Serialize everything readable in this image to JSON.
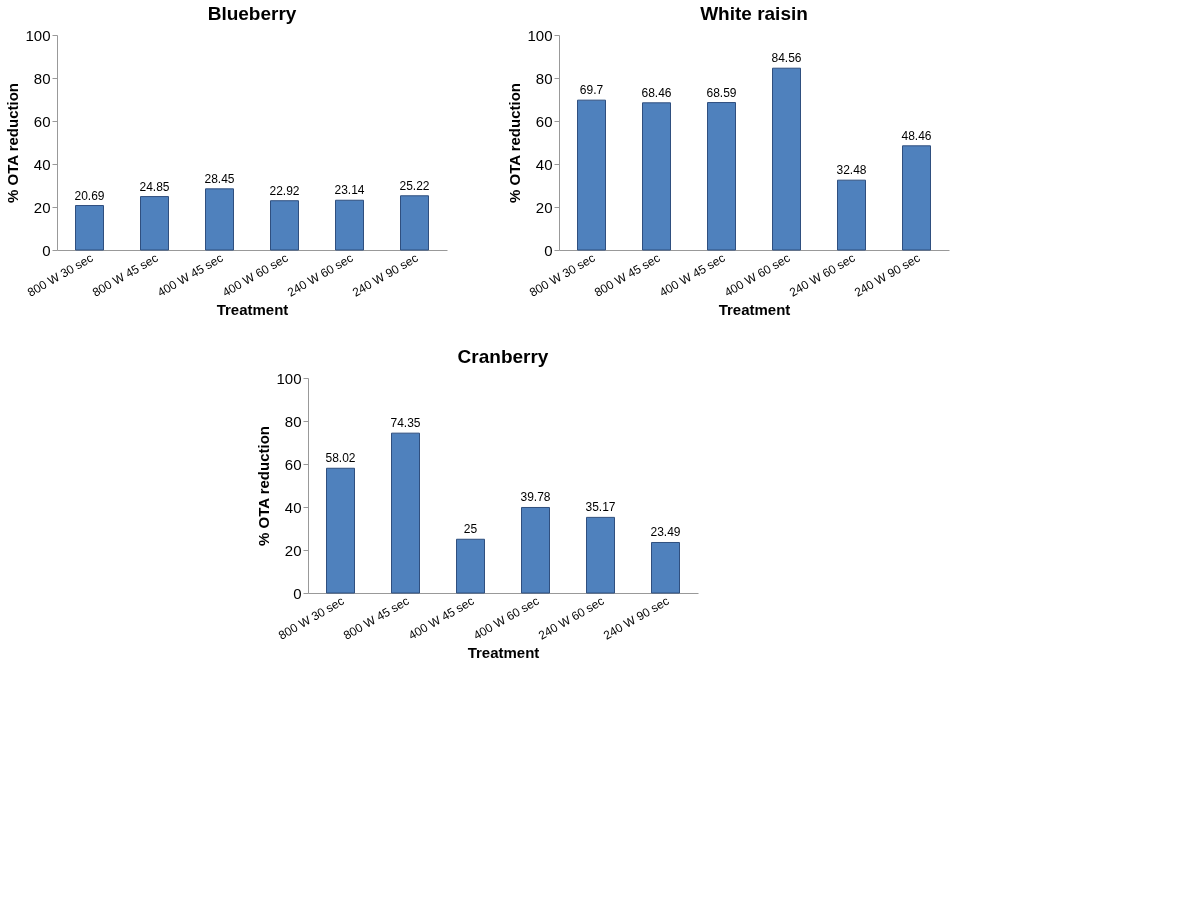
{
  "chart_data": [
    {
      "type": "bar",
      "title": "Blueberry",
      "xlabel": "Treatment",
      "ylabel": "% OTA reduction",
      "categories": [
        "800 W 30 sec",
        "800 W 45 sec",
        "400 W 45 sec",
        "400 W 60 sec",
        "240 W 60 sec",
        "240 W 90 sec"
      ],
      "values": [
        20.69,
        24.85,
        28.45,
        22.92,
        23.14,
        25.22
      ],
      "color": "#4f81bd",
      "ylim": [
        0,
        100
      ],
      "yticks": [
        0,
        20,
        40,
        60,
        80,
        100
      ],
      "data_labels": true
    },
    {
      "type": "bar",
      "title": "White raisin",
      "xlabel": "Treatment",
      "ylabel": "% OTA reduction",
      "categories": [
        "800 W 30 sec",
        "800 W 45 sec",
        "400 W 45 sec",
        "400 W 60 sec",
        "240 W 60 sec",
        "240 W 90 sec"
      ],
      "values": [
        69.7,
        68.46,
        68.59,
        84.56,
        32.48,
        48.46
      ],
      "color": "#4f81bd",
      "ylim": [
        0,
        100
      ],
      "yticks": [
        0,
        20,
        40,
        60,
        80,
        100
      ],
      "data_labels": true
    },
    {
      "type": "bar",
      "title": "Cranberry",
      "xlabel": "Treatment",
      "ylabel": "% OTA reduction",
      "categories": [
        "800 W 30 sec",
        "800 W 45 sec",
        "400 W 45 sec",
        "400 W 60 sec",
        "240 W 60 sec",
        "240 W 90 sec"
      ],
      "values": [
        58.02,
        74.35,
        25,
        39.78,
        35.17,
        23.49
      ],
      "color": "#4f81bd",
      "ylim": [
        0,
        100
      ],
      "yticks": [
        0,
        20,
        40,
        60,
        80,
        100
      ],
      "data_labels": true
    }
  ]
}
